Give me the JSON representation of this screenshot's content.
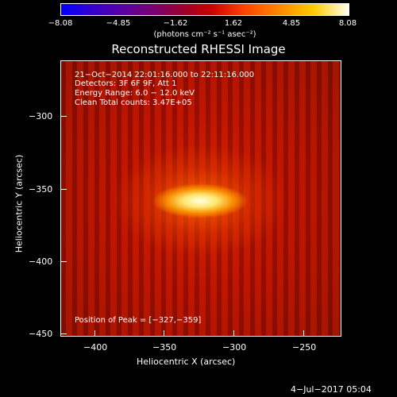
{
  "colorbar": {
    "ticks": [
      "−8.08",
      "−4.85",
      "−1.62",
      "1.62",
      "4.85",
      "8.08"
    ],
    "unit": "(photons cm⁻² s⁻¹ asec⁻²)"
  },
  "title": "Reconstructed RHESSI Image",
  "info": {
    "line1": "21−Oct−2014 22:01:16.000 to 22:11:16.000",
    "line2": "Detectors: 3F 6F 9F, Att 1",
    "line3": "Energy Range: 6.0 − 12.0 keV",
    "line4": "Clean     Total counts: 3.47E+05",
    "peak": "Position of Peak = [−327,−359]"
  },
  "axes": {
    "xlabel": "Heliocentric X (arcsec)",
    "ylabel": "Heliocentric Y (arcsec)",
    "xticks": [
      "−400",
      "−350",
      "−300",
      "−250"
    ],
    "yticks": [
      "−300",
      "−350",
      "−400",
      "−450"
    ]
  },
  "footer": {
    "date": "4−Jul−2017 05:04"
  }
}
